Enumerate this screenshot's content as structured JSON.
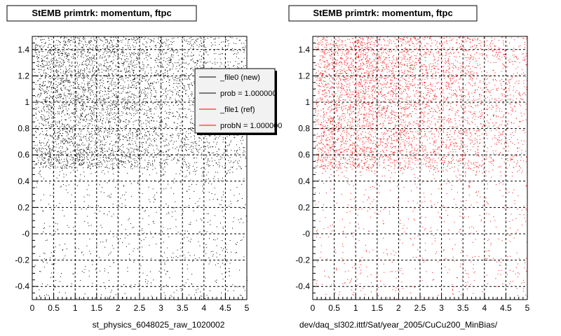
{
  "chart_data": [
    {
      "type": "scatter",
      "title": "StEMB primtrk: momentum, ftpc",
      "xlim": [
        0,
        5
      ],
      "ylim": [
        -0.5,
        1.5
      ],
      "x_ticks": [
        "0",
        "0.5",
        "1",
        "1.5",
        "2",
        "2.5",
        "3",
        "3.5",
        "4",
        "4.5",
        "5"
      ],
      "y_ticks": [
        "-0.4",
        "-0.2",
        "-0",
        "0.2",
        "0.4",
        "0.6",
        "0.8",
        "1",
        "1.2",
        "1.4"
      ],
      "grid": true,
      "marker_color": "#000000",
      "footer": "st_physics_6048025_raw_1020002",
      "legend": {
        "placement": "top-right",
        "entries": [
          {
            "label": "_file0 (new)",
            "color": "#000000"
          },
          {
            "label": "prob = 1.000000",
            "color": "#000000"
          },
          {
            "label": "_file1 (ref)",
            "color": "#ff0000"
          },
          {
            "label": "probN = 1.000000",
            "color": "#ff0000"
          }
        ]
      }
    },
    {
      "type": "scatter",
      "title": "StEMB primtrk: momentum, ftpc",
      "xlim": [
        0,
        5
      ],
      "ylim": [
        -0.5,
        1.5
      ],
      "x_ticks": [
        "0",
        "0.5",
        "1",
        "1.5",
        "2",
        "2.5",
        "3",
        "3.5",
        "4",
        "4.5",
        "5"
      ],
      "y_ticks": [
        "-0.4",
        "-0.2",
        "-0",
        "0.2",
        "0.4",
        "0.6",
        "0.8",
        "1",
        "1.2",
        "1.4"
      ],
      "grid": true,
      "marker_color": "#ff0000",
      "footer": "dev/daq_sl302.ittf/Sat/year_2005/CuCu200_MinBias/"
    }
  ]
}
